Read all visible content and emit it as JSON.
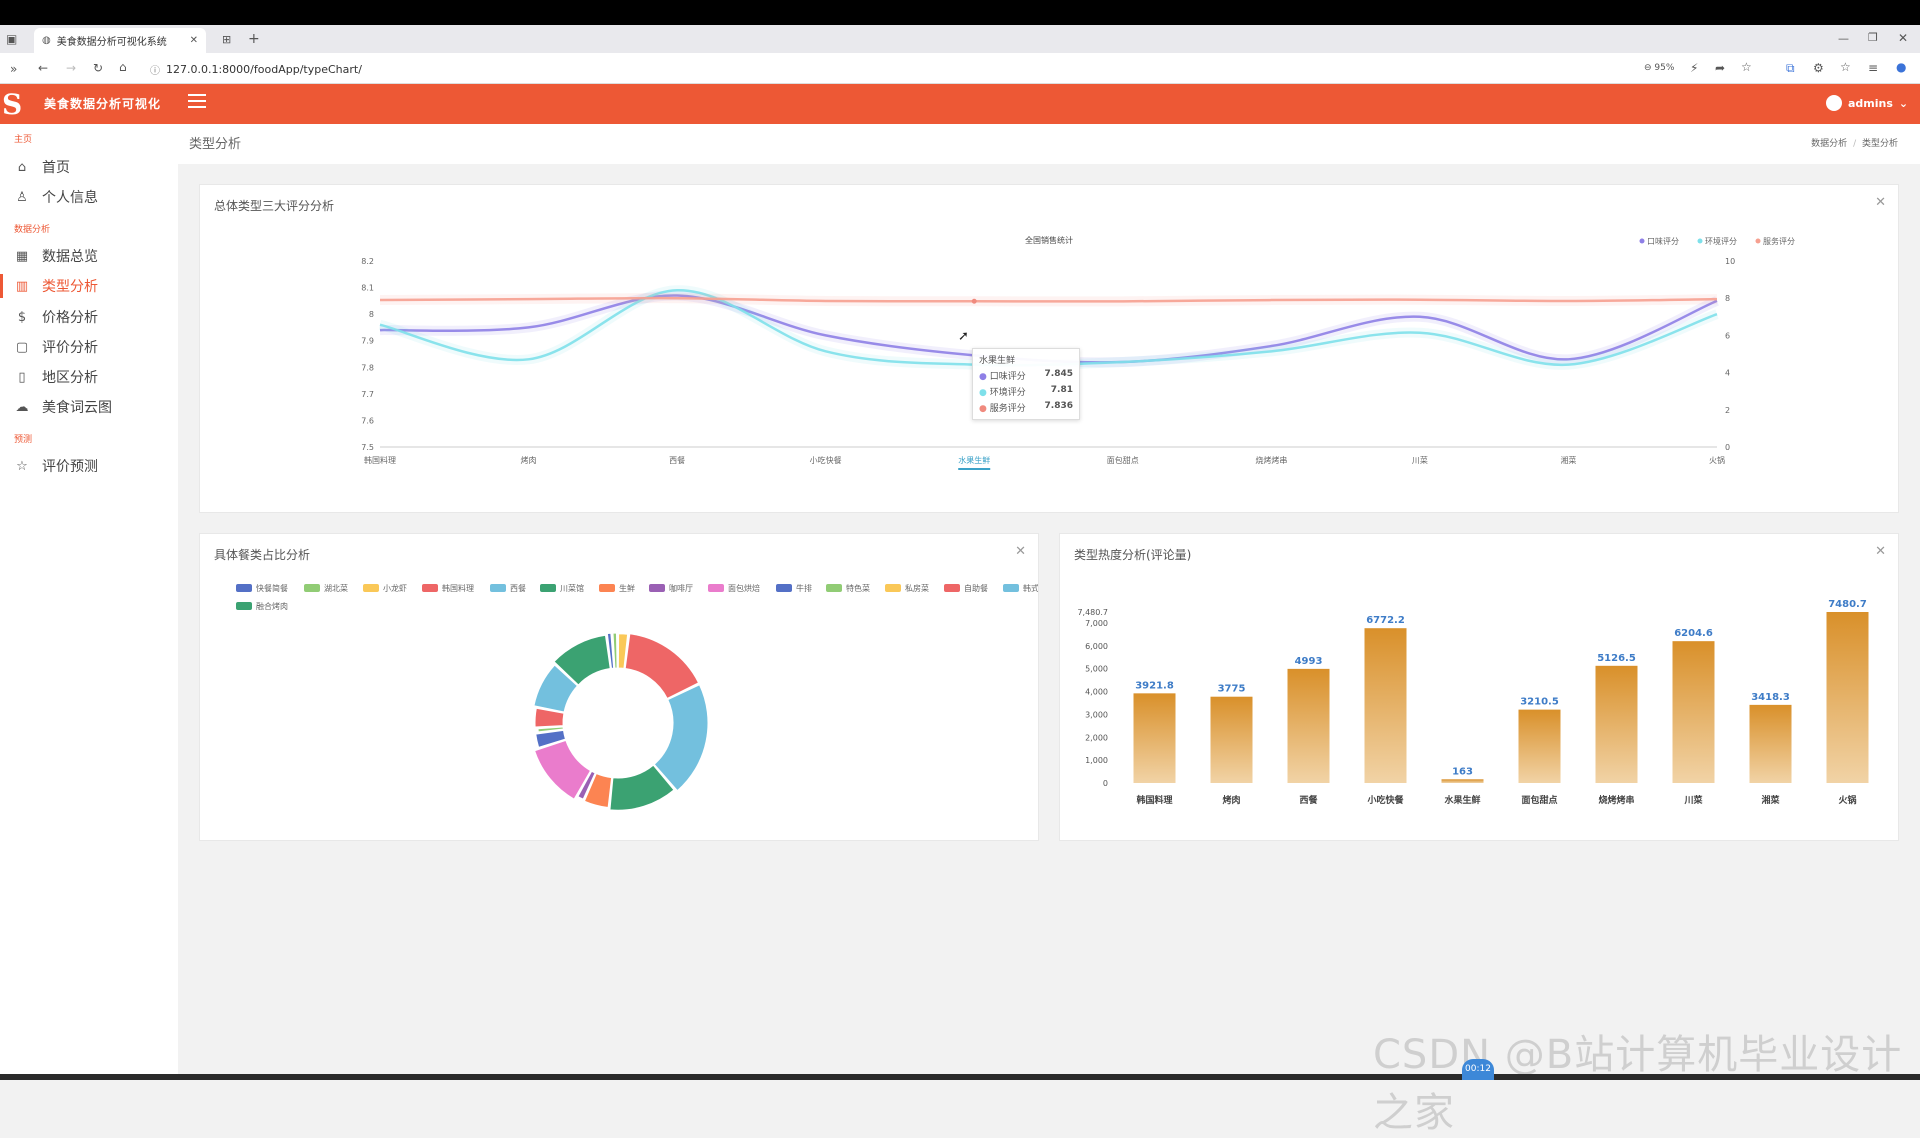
{
  "browser": {
    "tab_title": "美食数据分析可视化系统",
    "url": "127.0.0.1:8000/foodApp/typeChart/",
    "zoom": "95%"
  },
  "app": {
    "title": "美食数据分析可视化",
    "user": "admins"
  },
  "sidebar": {
    "sections": [
      {
        "label": "主页"
      },
      {
        "label": "数据分析"
      },
      {
        "label": "预测"
      }
    ],
    "items": [
      {
        "label": "首页",
        "icon": "home-icon"
      },
      {
        "label": "个人信息",
        "icon": "user-icon"
      },
      {
        "label": "数据总览",
        "icon": "table-icon"
      },
      {
        "label": "类型分析",
        "icon": "chart-icon",
        "active": true
      },
      {
        "label": "价格分析",
        "icon": "dollar-icon"
      },
      {
        "label": "评价分析",
        "icon": "comment-icon"
      },
      {
        "label": "地区分析",
        "icon": "map-icon"
      },
      {
        "label": "美食词云图",
        "icon": "cloud-icon"
      },
      {
        "label": "评价预测",
        "icon": "star-icon"
      }
    ]
  },
  "page": {
    "title": "类型分析",
    "breadcrumb": [
      "数据分析",
      "类型分析"
    ]
  },
  "cards": {
    "line": {
      "title": "总体类型三大评分分析"
    },
    "pie": {
      "title": "具体餐类占比分析"
    },
    "bar": {
      "title": "类型热度分析(评论量)"
    }
  },
  "tooltip": {
    "title": "水果生鲜",
    "rows": [
      {
        "name": "口味评分",
        "value": "7.845",
        "color": "#8e7fe6"
      },
      {
        "name": "环境评分",
        "value": "7.81",
        "color": "#7ee0ea"
      },
      {
        "name": "服务评分",
        "value": "7.836",
        "color": "#f08a7e"
      }
    ]
  },
  "chart_data": [
    {
      "type": "line",
      "title": "全国销售统计",
      "categories": [
        "韩国料理",
        "烤肉",
        "西餐",
        "小吃快餐",
        "水果生鲜",
        "面包甜点",
        "烧烤烤串",
        "川菜",
        "湘菜",
        "火锅"
      ],
      "series": [
        {
          "name": "口味评分",
          "axis": "left",
          "color": "#8e7fe6",
          "values": [
            7.94,
            7.95,
            8.07,
            7.92,
            7.845,
            7.82,
            7.88,
            7.99,
            7.83,
            8.05
          ]
        },
        {
          "name": "环境评分",
          "axis": "left",
          "color": "#7ee0ea",
          "values": [
            7.96,
            7.83,
            8.09,
            7.86,
            7.81,
            7.82,
            7.86,
            7.93,
            7.81,
            8.0
          ]
        },
        {
          "name": "服务评分",
          "axis": "right",
          "color": "#f6a090",
          "values": [
            7.9,
            7.95,
            8.0,
            7.85,
            7.836,
            7.83,
            7.9,
            7.92,
            7.85,
            7.95
          ]
        }
      ],
      "legend_position": "top-right",
      "y_left": {
        "min": 7.5,
        "max": 8.2,
        "ticks": [
          "7.5",
          "7.6",
          "7.7",
          "7.8",
          "7.9",
          "8",
          "8.1",
          "8.2"
        ]
      },
      "y_right": {
        "min": 0,
        "max": 10,
        "ticks": [
          "0",
          "2",
          "4",
          "6",
          "8",
          "10"
        ]
      }
    },
    {
      "type": "pie",
      "variant": "donut-rose",
      "legend": [
        {
          "name": "快餐简餐",
          "color": "#5470c6"
        },
        {
          "name": "湖北菜",
          "color": "#91cc75"
        },
        {
          "name": "小龙虾",
          "color": "#fac858"
        },
        {
          "name": "韩国料理",
          "color": "#ee6666"
        },
        {
          "name": "西餐",
          "color": "#73c0de"
        },
        {
          "name": "川菜馆",
          "color": "#3ba272"
        },
        {
          "name": "生鲜",
          "color": "#fc8452"
        },
        {
          "name": "咖啡厅",
          "color": "#9a60b4"
        },
        {
          "name": "面包烘焙",
          "color": "#ea7ccc"
        },
        {
          "name": "牛排",
          "color": "#5470c6"
        },
        {
          "name": "特色菜",
          "color": "#91cc75"
        },
        {
          "name": "私房菜",
          "color": "#fac858"
        },
        {
          "name": "自助餐",
          "color": "#ee6666"
        },
        {
          "name": "韩式烤肉",
          "color": "#73c0de"
        },
        {
          "name": "融合烤肉",
          "color": "#3ba272"
        }
      ],
      "slices": [
        {
          "color": "#ee6666",
          "value": 16,
          "radius": 1.0
        },
        {
          "color": "#73c0de",
          "value": 21,
          "radius": 1.0
        },
        {
          "color": "#3ba272",
          "value": 13,
          "radius": 0.92
        },
        {
          "color": "#fc8452",
          "value": 5,
          "radius": 0.86
        },
        {
          "color": "#9a60b4",
          "value": 1.5,
          "radius": 0.82
        },
        {
          "color": "#ea7ccc",
          "value": 12,
          "radius": 0.94
        },
        {
          "color": "#5470c6",
          "value": 3,
          "radius": 0.8
        },
        {
          "color": "#91cc75",
          "value": 1,
          "radius": 0.72
        },
        {
          "color": "#ee6666",
          "value": 4,
          "radius": 0.8
        },
        {
          "color": "#73c0de",
          "value": 9,
          "radius": 0.88
        },
        {
          "color": "#3ba272",
          "value": 11,
          "radius": 0.96
        },
        {
          "color": "#5470c6",
          "value": 1,
          "radius": 1.0
        },
        {
          "color": "#91cc75",
          "value": 1,
          "radius": 1.0
        },
        {
          "color": "#fac858",
          "value": 2,
          "radius": 0.98
        }
      ]
    },
    {
      "type": "bar",
      "categories": [
        "韩国料理",
        "烤肉",
        "西餐",
        "小吃快餐",
        "水果生鲜",
        "面包甜点",
        "烧烤烤串",
        "川菜",
        "湘菜",
        "火锅"
      ],
      "values": [
        3921.8,
        3775,
        4993,
        6772.2,
        163,
        3210.5,
        5126.5,
        6204.6,
        3418.3,
        7480.7
      ],
      "value_labels": [
        "3921.8",
        "3775",
        "4993",
        "6772.2",
        "163",
        "3210.5",
        "5126.5",
        "6204.6",
        "3418.3",
        "7480.7"
      ],
      "ylim": [
        0,
        7480.7
      ],
      "y_ticks": [
        "0",
        "1,000",
        "2,000",
        "3,000",
        "4,000",
        "5,000",
        "6,000",
        "7,000",
        "7,480.7"
      ]
    }
  ],
  "overlay": {
    "watermark": "CSDN @B站计算机毕业设计之家",
    "time": "00:12"
  }
}
